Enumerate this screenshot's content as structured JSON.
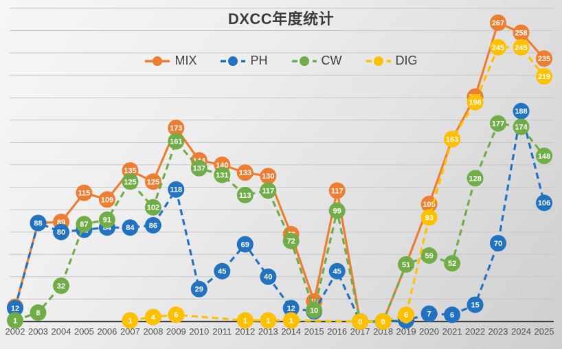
{
  "title": "DXCC年度统计",
  "chart_data": {
    "type": "line",
    "title": "DXCC年度统计",
    "x": [
      "2002",
      "2003",
      "2004",
      "2005",
      "2006",
      "2007",
      "2008",
      "2009",
      "2010",
      "2011",
      "2012",
      "2013",
      "2014",
      "2015",
      "2016",
      "2017",
      "2018",
      "2019",
      "2020",
      "2021",
      "2022",
      "2023",
      "2024",
      "2025"
    ],
    "series": [
      {
        "name": "MIX",
        "color": "#ED7D31",
        "line_style": "solid",
        "values": [
          13,
          88,
          89,
          115,
          109,
          135,
          125,
          173,
          144,
          140,
          133,
          130,
          78,
          18,
          117,
          0,
          0,
          51,
          105,
          163,
          201,
          267,
          258,
          235
        ]
      },
      {
        "name": "PH",
        "color": "#2173C2",
        "line_style": "dashed",
        "values": [
          12,
          88,
          80,
          82,
          84,
          84,
          86,
          118,
          29,
          45,
          69,
          40,
          12,
          9,
          45,
          0,
          0,
          1,
          7,
          6,
          15,
          70,
          188,
          106
        ]
      },
      {
        "name": "CW",
        "color": "#70AD47",
        "line_style": "dashed",
        "values": [
          1,
          8,
          32,
          87,
          91,
          125,
          102,
          161,
          137,
          131,
          113,
          117,
          72,
          10,
          99,
          0,
          0,
          51,
          59,
          52,
          128,
          177,
          174,
          148
        ]
      },
      {
        "name": "DIG",
        "color": "#FFC000",
        "line_style": "dashed",
        "values": [
          null,
          null,
          null,
          null,
          null,
          1,
          4,
          6,
          null,
          null,
          1,
          1,
          1,
          null,
          null,
          0,
          0,
          6,
          93,
          163,
          196,
          245,
          245,
          219
        ]
      }
    ],
    "ylim": [
      0,
      280
    ],
    "grid_step": 20,
    "grid_on": true,
    "y_axis_labels_shown": false,
    "legend_position": "top-center",
    "data_label_style": "value in circle marker, white bold text",
    "colors": {
      "axis": "#3f3f3f",
      "gridline": "#c7c7c7",
      "x_tick_text": "#4f4f4f",
      "title_text": "#3c3c3c",
      "data_label_text": "#ffffff",
      "background_top_left": "#f6f6f6",
      "background_bottom_right": "#cecece"
    }
  }
}
